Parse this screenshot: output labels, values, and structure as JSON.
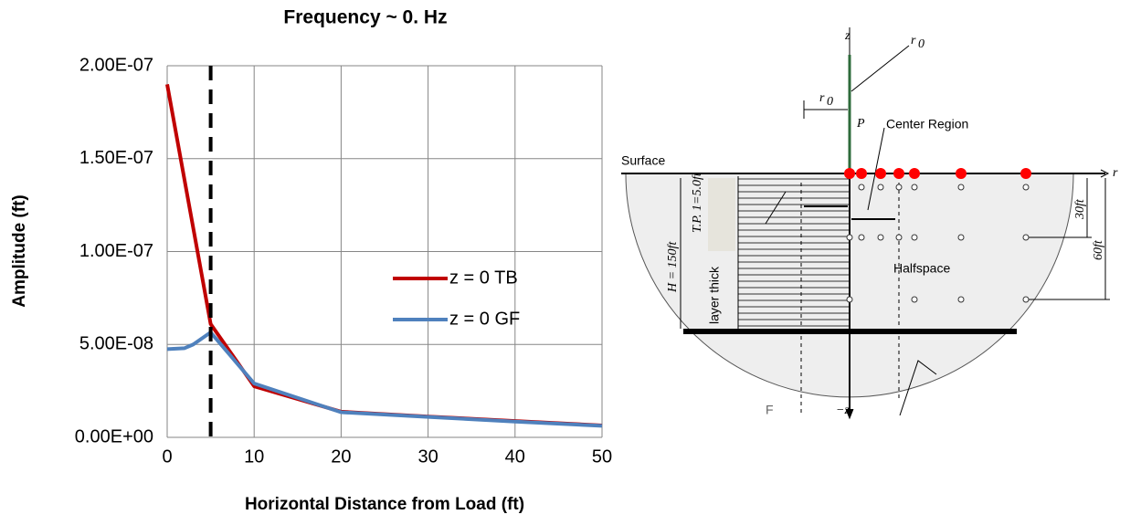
{
  "chart_data": {
    "type": "line",
    "title": "Frequency ~ 0. Hz",
    "x_label": "Horizontal Distance from Load (ft)",
    "y_label": "Amplitude (ft)",
    "xlim": [
      0,
      50
    ],
    "xticks": [
      0,
      10,
      20,
      30,
      40,
      50
    ],
    "ylim": [
      0,
      2e-07
    ],
    "yticks": [
      {
        "value": 0,
        "label": "0.00E+00"
      },
      {
        "value": 5e-08,
        "label": "5.00E-08"
      },
      {
        "value": 1e-07,
        "label": "1.00E-07"
      },
      {
        "value": 1.5e-07,
        "label": "1.50E-07"
      },
      {
        "value": 2e-07,
        "label": "2.00E-07"
      }
    ],
    "grid": true,
    "vline": 5,
    "series": [
      {
        "name": "z = 0 TB",
        "color": "#c00000",
        "x": [
          0,
          5,
          10,
          20,
          30,
          40,
          50
        ],
        "values": [
          1.9e-07,
          6.1e-08,
          2.75e-08,
          1.38e-08,
          1.12e-08,
          8.8e-09,
          6.4e-09
        ]
      },
      {
        "name": "z = 0 GF",
        "color": "#4f81bd",
        "x": [
          0,
          2,
          3,
          5,
          10,
          20,
          30,
          40,
          50
        ],
        "values": [
          4.75e-08,
          4.8e-08,
          5e-08,
          5.65e-08,
          2.9e-08,
          1.35e-08,
          1.1e-08,
          8.5e-09,
          6.2e-09
        ]
      }
    ]
  },
  "diagram": {
    "labels": {
      "z": "z",
      "r0_arrow": "r",
      "r0_arrow_sub": "0",
      "r0_dim": "r",
      "r0_dim_sub": "0",
      "p": "P",
      "center": "Center Region",
      "surface": "Surface",
      "r": "r",
      "h": "H = 150ft",
      "tp": "T.P. 1=5.0ft",
      "layer": "layer thick",
      "d30": "30ft",
      "d60": "60ft",
      "halfspace": "Halfspace",
      "negz": "−z",
      "f": "F"
    }
  }
}
